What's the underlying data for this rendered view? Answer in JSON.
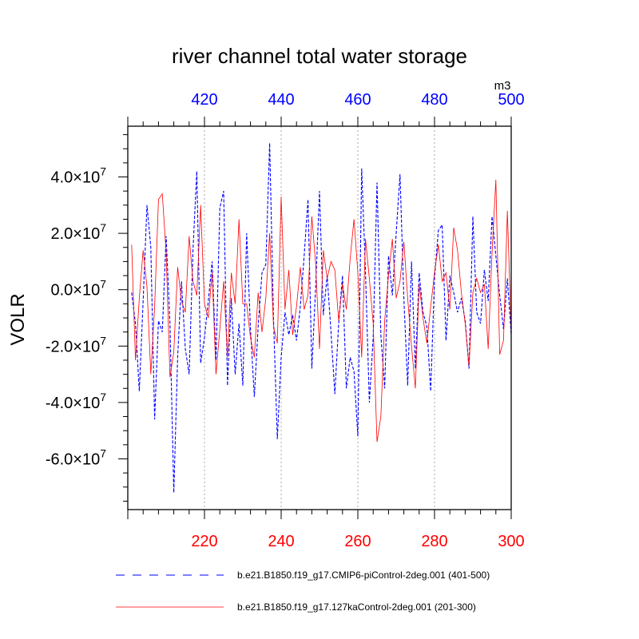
{
  "chart_data": {
    "type": "line",
    "title": "river channel total water storage",
    "ylabel": "VOLR",
    "units": "m3",
    "xlim_bottom": [
      200,
      300
    ],
    "xlim_top": [
      400,
      500
    ],
    "ylim": [
      -78000000.0,
      58000000.0
    ],
    "x_ticks_bottom": [
      {
        "value": 220,
        "label": "220"
      },
      {
        "value": 240,
        "label": "240"
      },
      {
        "value": 260,
        "label": "260"
      },
      {
        "value": 280,
        "label": "280"
      },
      {
        "value": 300,
        "label": "300"
      }
    ],
    "x_ticks_top": [
      {
        "value": 420,
        "label": "420"
      },
      {
        "value": 440,
        "label": "440"
      },
      {
        "value": 460,
        "label": "460"
      },
      {
        "value": 480,
        "label": "480"
      },
      {
        "value": 500,
        "label": "500"
      }
    ],
    "y_ticks": [
      {
        "value": 40000000,
        "mantissa": "4.0",
        "base": "×10",
        "exp": "7"
      },
      {
        "value": 20000000,
        "mantissa": "2.0",
        "base": "×10",
        "exp": "7"
      },
      {
        "value": 0,
        "mantissa": "0.0",
        "base": "×10",
        "exp": "7"
      },
      {
        "value": -20000000,
        "mantissa": "-2.0",
        "base": "×10",
        "exp": "7"
      },
      {
        "value": -40000000,
        "mantissa": "-4.0",
        "base": "×10",
        "exp": "7"
      },
      {
        "value": -60000000,
        "mantissa": "-6.0",
        "base": "×10",
        "exp": "7"
      }
    ],
    "grid": "vertical dashed at major x ticks",
    "legend_placement": "bottom",
    "series": [
      {
        "name": "b.e21.B1850.f19_g17.CMIP6-piControl-2deg.001 (401-500)",
        "axis": "top",
        "color": "#0000ff",
        "style": "dashed",
        "x_start": 401,
        "values": [
          -0.1,
          -1.2,
          -3.6,
          -0.4,
          3.0,
          1.5,
          -4.6,
          -1.1,
          -1.5,
          1.9,
          -1.2,
          -7.2,
          -2.4,
          0.3,
          -2.1,
          -3.0,
          1.4,
          4.2,
          -2.6,
          -1.7,
          -0.4,
          1.0,
          -2.5,
          2.9,
          3.5,
          -3.4,
          -0.3,
          -3.0,
          -1.2,
          -3.4,
          2.0,
          -1.4,
          -3.8,
          -1.3,
          0.6,
          0.9,
          5.2,
          -1.0,
          -5.3,
          -2.4,
          -0.8,
          -1.6,
          -0.9,
          -1.8,
          -0.6,
          1.2,
          3.2,
          -2.8,
          0.1,
          3.5,
          -0.9,
          0.5,
          -1.5,
          -3.7,
          -1.2,
          0.5,
          -3.5,
          -2.4,
          -2.9,
          -5.2,
          4.3,
          0.6,
          -4.0,
          -1.7,
          3.8,
          -1.6,
          -3.5,
          1.2,
          -0.2,
          2.0,
          4.1,
          -0.3,
          -3.4,
          1.0,
          -2.8,
          0.6,
          -0.8,
          -1.3,
          -3.6,
          0.4,
          2.1,
          2.3,
          -1.8,
          0.5,
          -0.1,
          -0.8,
          -0.3,
          -1.1,
          -2.8,
          2.6,
          -0.8,
          -1.2,
          0.7,
          -0.4,
          2.6,
          1.2,
          -0.2,
          -1.4,
          0.4,
          -1.6
        ],
        "value_scale": 10000000
      },
      {
        "name": "b.e21.B1850.f19_g17.127kaControl-2deg.001 (201-300)",
        "axis": "bottom",
        "color": "#ff0000",
        "style": "solid",
        "x_start": 201,
        "values": [
          1.6,
          -2.5,
          -0.3,
          1.4,
          0.1,
          -3.0,
          -0.6,
          3.2,
          3.4,
          1.3,
          -3.1,
          -2.2,
          0.8,
          -0.4,
          -0.8,
          1.9,
          0.3,
          -0.2,
          3.0,
          -0.5,
          -1.0,
          0.6,
          -3.0,
          -1.4,
          0.3,
          -2.4,
          0.6,
          -0.5,
          2.5,
          -0.5,
          -0.5,
          -1.7,
          -2.4,
          -0.1,
          -1.5,
          -0.3,
          2.0,
          -1.3,
          -1.9,
          3.3,
          -0.7,
          0.7,
          -1.6,
          -0.6,
          0.8,
          -0.7,
          -0.2,
          2.6,
          0.9,
          -2.1,
          1.4,
          0.4,
          1.0,
          0.7,
          -1.1,
          0.2,
          -0.7,
          1.1,
          2.5,
          0.6,
          -2.4,
          1.8,
          0.4,
          -1.2,
          -5.4,
          -4.5,
          -1.1,
          0.5,
          1.8,
          -0.3,
          0.3,
          1.7,
          -0.3,
          -2.0,
          -3.5,
          0.2,
          -1.0,
          -1.9,
          -0.6,
          0.6,
          1.6,
          0.3,
          0.6,
          -0.7,
          2.2,
          1.4,
          -0.1,
          -1.2,
          -2.7,
          -0.1,
          0.4,
          -0.1,
          0.2,
          -2.1,
          1.3,
          3.9,
          -2.3,
          -1.8,
          2.8,
          -1.5
        ],
        "value_scale": 10000000
      }
    ]
  }
}
